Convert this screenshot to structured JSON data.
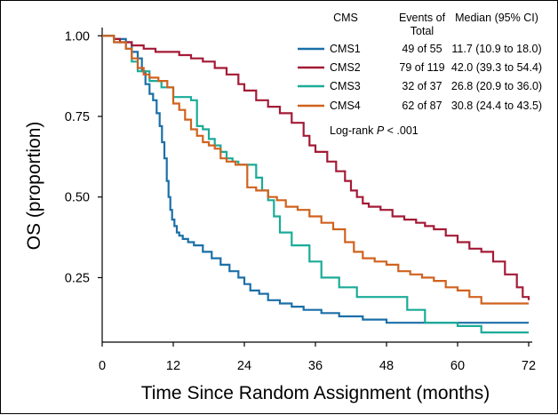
{
  "chart_data": {
    "type": "line",
    "title": "",
    "xlabel": "Time Since Random Assignment (months)",
    "ylabel": "OS (proportion)",
    "xlim": [
      0,
      72
    ],
    "ylim": [
      0.05,
      1.02
    ],
    "xticks": [
      "0",
      "12",
      "24",
      "36",
      "48",
      "60",
      "72"
    ],
    "yticks": [
      "1.00",
      "0.75",
      "0.50",
      "0.25"
    ],
    "grid": false,
    "legend_position": "top-right",
    "legend_headers": {
      "name": "CMS",
      "events_line1": "Events of",
      "events_line2": "Total",
      "median": "Median (95% CI)"
    },
    "annotation": "Log-rank P < .001",
    "series": [
      {
        "name": "CMS1",
        "events": "49 of 55",
        "median": "11.7 (10.9 to 18.0)",
        "color": "#1b6fa8",
        "x": [
          0,
          2,
          4,
          5,
          6,
          6.7,
          7.3,
          8,
          8.6,
          9.2,
          9.7,
          10.1,
          10.5,
          10.9,
          11.2,
          11.5,
          11.8,
          12.2,
          12.6,
          13,
          13.6,
          14.5,
          15.5,
          17,
          18.5,
          20,
          21.5,
          23,
          24,
          25,
          26.5,
          28,
          30,
          32,
          34,
          37,
          40,
          44,
          48,
          52,
          56,
          64,
          72
        ],
        "y": [
          1.0,
          0.99,
          0.98,
          0.95,
          0.93,
          0.89,
          0.85,
          0.82,
          0.8,
          0.76,
          0.72,
          0.67,
          0.62,
          0.55,
          0.5,
          0.46,
          0.43,
          0.41,
          0.39,
          0.38,
          0.37,
          0.36,
          0.35,
          0.33,
          0.31,
          0.29,
          0.27,
          0.25,
          0.23,
          0.21,
          0.2,
          0.18,
          0.17,
          0.16,
          0.15,
          0.14,
          0.13,
          0.12,
          0.11,
          0.11,
          0.11,
          0.11,
          0.11
        ]
      },
      {
        "name": "CMS2",
        "events": "79 of 119",
        "median": "42.0 (39.3 to 54.4)",
        "color": "#a31a36",
        "x": [
          0,
          2,
          3,
          5,
          7,
          9,
          11,
          13,
          15,
          17,
          19,
          21,
          23,
          24,
          26,
          28,
          30,
          32,
          34,
          35,
          36,
          38,
          39.5,
          41,
          42,
          43,
          44,
          45,
          47,
          49,
          51,
          53,
          54.5,
          56,
          58,
          60,
          62,
          64,
          66,
          68,
          70,
          71,
          72
        ],
        "y": [
          1.0,
          0.99,
          0.98,
          0.97,
          0.96,
          0.95,
          0.95,
          0.94,
          0.93,
          0.92,
          0.9,
          0.88,
          0.85,
          0.83,
          0.8,
          0.78,
          0.76,
          0.73,
          0.69,
          0.66,
          0.64,
          0.61,
          0.58,
          0.55,
          0.52,
          0.5,
          0.48,
          0.47,
          0.46,
          0.44,
          0.43,
          0.42,
          0.41,
          0.4,
          0.38,
          0.36,
          0.34,
          0.33,
          0.3,
          0.26,
          0.22,
          0.19,
          0.18
        ]
      },
      {
        "name": "CMS3",
        "events": "32 of 37",
        "median": "26.8 (20.9 to 36.0)",
        "color": "#1aab98",
        "x": [
          0,
          2,
          4,
          5,
          6,
          8,
          10,
          12,
          14,
          15,
          16,
          17,
          18,
          19,
          20,
          21,
          22,
          23,
          24.5,
          26,
          27,
          28,
          29,
          30,
          32,
          35,
          37,
          40,
          43,
          50,
          51.5,
          54.5,
          60,
          64,
          72
        ],
        "y": [
          1.0,
          0.98,
          0.96,
          0.92,
          0.89,
          0.86,
          0.84,
          0.81,
          0.81,
          0.8,
          0.72,
          0.71,
          0.68,
          0.66,
          0.64,
          0.62,
          0.61,
          0.6,
          0.6,
          0.56,
          0.52,
          0.49,
          0.44,
          0.39,
          0.35,
          0.3,
          0.25,
          0.22,
          0.19,
          0.19,
          0.15,
          0.11,
          0.1,
          0.08,
          0.08
        ]
      },
      {
        "name": "CMS4",
        "events": "62 of 87",
        "median": "30.8 (24.4 to 43.5)",
        "color": "#d0621e",
        "x": [
          0,
          2,
          4,
          5,
          6,
          7,
          8,
          9.5,
          11,
          12,
          13,
          14,
          15,
          16,
          17,
          18,
          19,
          20,
          21,
          22.5,
          24.5,
          26,
          28,
          29.5,
          31,
          33,
          35,
          37,
          39,
          41,
          42.5,
          44,
          46,
          48,
          50,
          52,
          54,
          56,
          58,
          60,
          62,
          64,
          72
        ],
        "y": [
          1.0,
          0.98,
          0.96,
          0.93,
          0.9,
          0.88,
          0.87,
          0.86,
          0.84,
          0.79,
          0.77,
          0.74,
          0.71,
          0.69,
          0.67,
          0.66,
          0.65,
          0.62,
          0.61,
          0.6,
          0.53,
          0.52,
          0.5,
          0.49,
          0.47,
          0.46,
          0.44,
          0.42,
          0.4,
          0.36,
          0.33,
          0.31,
          0.3,
          0.29,
          0.27,
          0.26,
          0.25,
          0.24,
          0.22,
          0.21,
          0.19,
          0.17,
          0.17
        ]
      }
    ]
  }
}
